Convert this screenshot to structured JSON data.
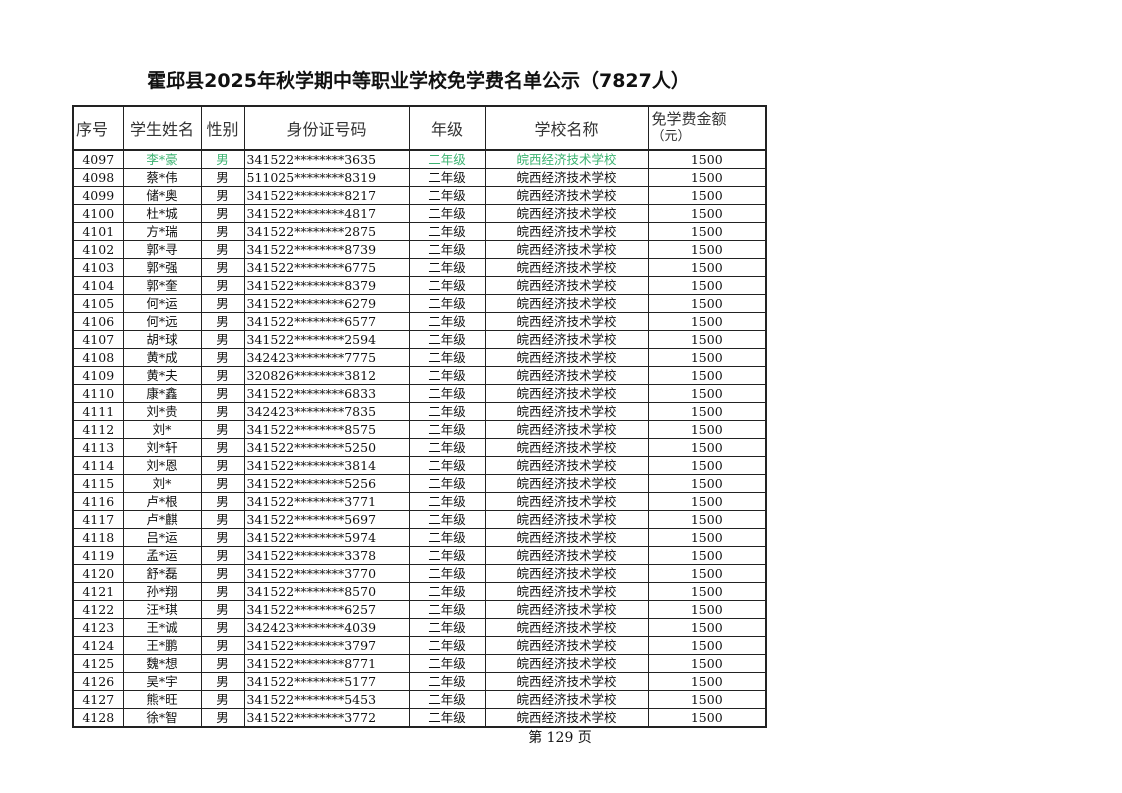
{
  "title": "霍邱县2025年秋学期中等职业学校免学费名单公示（7827人）",
  "columns": [
    "序号",
    "学生姓名",
    "性别",
    "身份证号码",
    "年级",
    "学校名称",
    "免学费金额",
    "（元）"
  ],
  "highlight_color": "#3cb371",
  "rows": [
    [
      "4097",
      "李*豪",
      "男",
      "341522********3635",
      "二年级",
      "皖西经济技术学校",
      "1500"
    ],
    [
      "4098",
      "蔡*伟",
      "男",
      "511025********8319",
      "二年级",
      "皖西经济技术学校",
      "1500"
    ],
    [
      "4099",
      "储*奥",
      "男",
      "341522********8217",
      "二年级",
      "皖西经济技术学校",
      "1500"
    ],
    [
      "4100",
      "杜*城",
      "男",
      "341522********4817",
      "二年级",
      "皖西经济技术学校",
      "1500"
    ],
    [
      "4101",
      "方*瑞",
      "男",
      "341522********2875",
      "二年级",
      "皖西经济技术学校",
      "1500"
    ],
    [
      "4102",
      "郭*寻",
      "男",
      "341522********8739",
      "二年级",
      "皖西经济技术学校",
      "1500"
    ],
    [
      "4103",
      "郭*强",
      "男",
      "341522********6775",
      "二年级",
      "皖西经济技术学校",
      "1500"
    ],
    [
      "4104",
      "郭*奎",
      "男",
      "341522********8379",
      "二年级",
      "皖西经济技术学校",
      "1500"
    ],
    [
      "4105",
      "何*运",
      "男",
      "341522********6279",
      "二年级",
      "皖西经济技术学校",
      "1500"
    ],
    [
      "4106",
      "何*远",
      "男",
      "341522********6577",
      "二年级",
      "皖西经济技术学校",
      "1500"
    ],
    [
      "4107",
      "胡*球",
      "男",
      "341522********2594",
      "二年级",
      "皖西经济技术学校",
      "1500"
    ],
    [
      "4108",
      "黄*成",
      "男",
      "342423********7775",
      "二年级",
      "皖西经济技术学校",
      "1500"
    ],
    [
      "4109",
      "黄*夫",
      "男",
      "320826********3812",
      "二年级",
      "皖西经济技术学校",
      "1500"
    ],
    [
      "4110",
      "康*鑫",
      "男",
      "341522********6833",
      "二年级",
      "皖西经济技术学校",
      "1500"
    ],
    [
      "4111",
      "刘*贵",
      "男",
      "342423********7835",
      "二年级",
      "皖西经济技术学校",
      "1500"
    ],
    [
      "4112",
      "刘*",
      "男",
      "341522********8575",
      "二年级",
      "皖西经济技术学校",
      "1500"
    ],
    [
      "4113",
      "刘*轩",
      "男",
      "341522********5250",
      "二年级",
      "皖西经济技术学校",
      "1500"
    ],
    [
      "4114",
      "刘*恩",
      "男",
      "341522********3814",
      "二年级",
      "皖西经济技术学校",
      "1500"
    ],
    [
      "4115",
      "刘*",
      "男",
      "341522********5256",
      "二年级",
      "皖西经济技术学校",
      "1500"
    ],
    [
      "4116",
      "卢*根",
      "男",
      "341522********3771",
      "二年级",
      "皖西经济技术学校",
      "1500"
    ],
    [
      "4117",
      "卢*麒",
      "男",
      "341522********5697",
      "二年级",
      "皖西经济技术学校",
      "1500"
    ],
    [
      "4118",
      "吕*运",
      "男",
      "341522********5974",
      "二年级",
      "皖西经济技术学校",
      "1500"
    ],
    [
      "4119",
      "孟*运",
      "男",
      "341522********3378",
      "二年级",
      "皖西经济技术学校",
      "1500"
    ],
    [
      "4120",
      "舒*磊",
      "男",
      "341522********3770",
      "二年级",
      "皖西经济技术学校",
      "1500"
    ],
    [
      "4121",
      "孙*翔",
      "男",
      "341522********8570",
      "二年级",
      "皖西经济技术学校",
      "1500"
    ],
    [
      "4122",
      "汪*琪",
      "男",
      "341522********6257",
      "二年级",
      "皖西经济技术学校",
      "1500"
    ],
    [
      "4123",
      "王*诚",
      "男",
      "342423********4039",
      "二年级",
      "皖西经济技术学校",
      "1500"
    ],
    [
      "4124",
      "王*鹏",
      "男",
      "341522********3797",
      "二年级",
      "皖西经济技术学校",
      "1500"
    ],
    [
      "4125",
      "魏*想",
      "男",
      "341522********8771",
      "二年级",
      "皖西经济技术学校",
      "1500"
    ],
    [
      "4126",
      "吴*宇",
      "男",
      "341522********5177",
      "二年级",
      "皖西经济技术学校",
      "1500"
    ],
    [
      "4127",
      "熊*旺",
      "男",
      "341522********5453",
      "二年级",
      "皖西经济技术学校",
      "1500"
    ],
    [
      "4128",
      "徐*智",
      "男",
      "341522********3772",
      "二年级",
      "皖西经济技术学校",
      "1500"
    ]
  ],
  "footer": "第  129  页"
}
